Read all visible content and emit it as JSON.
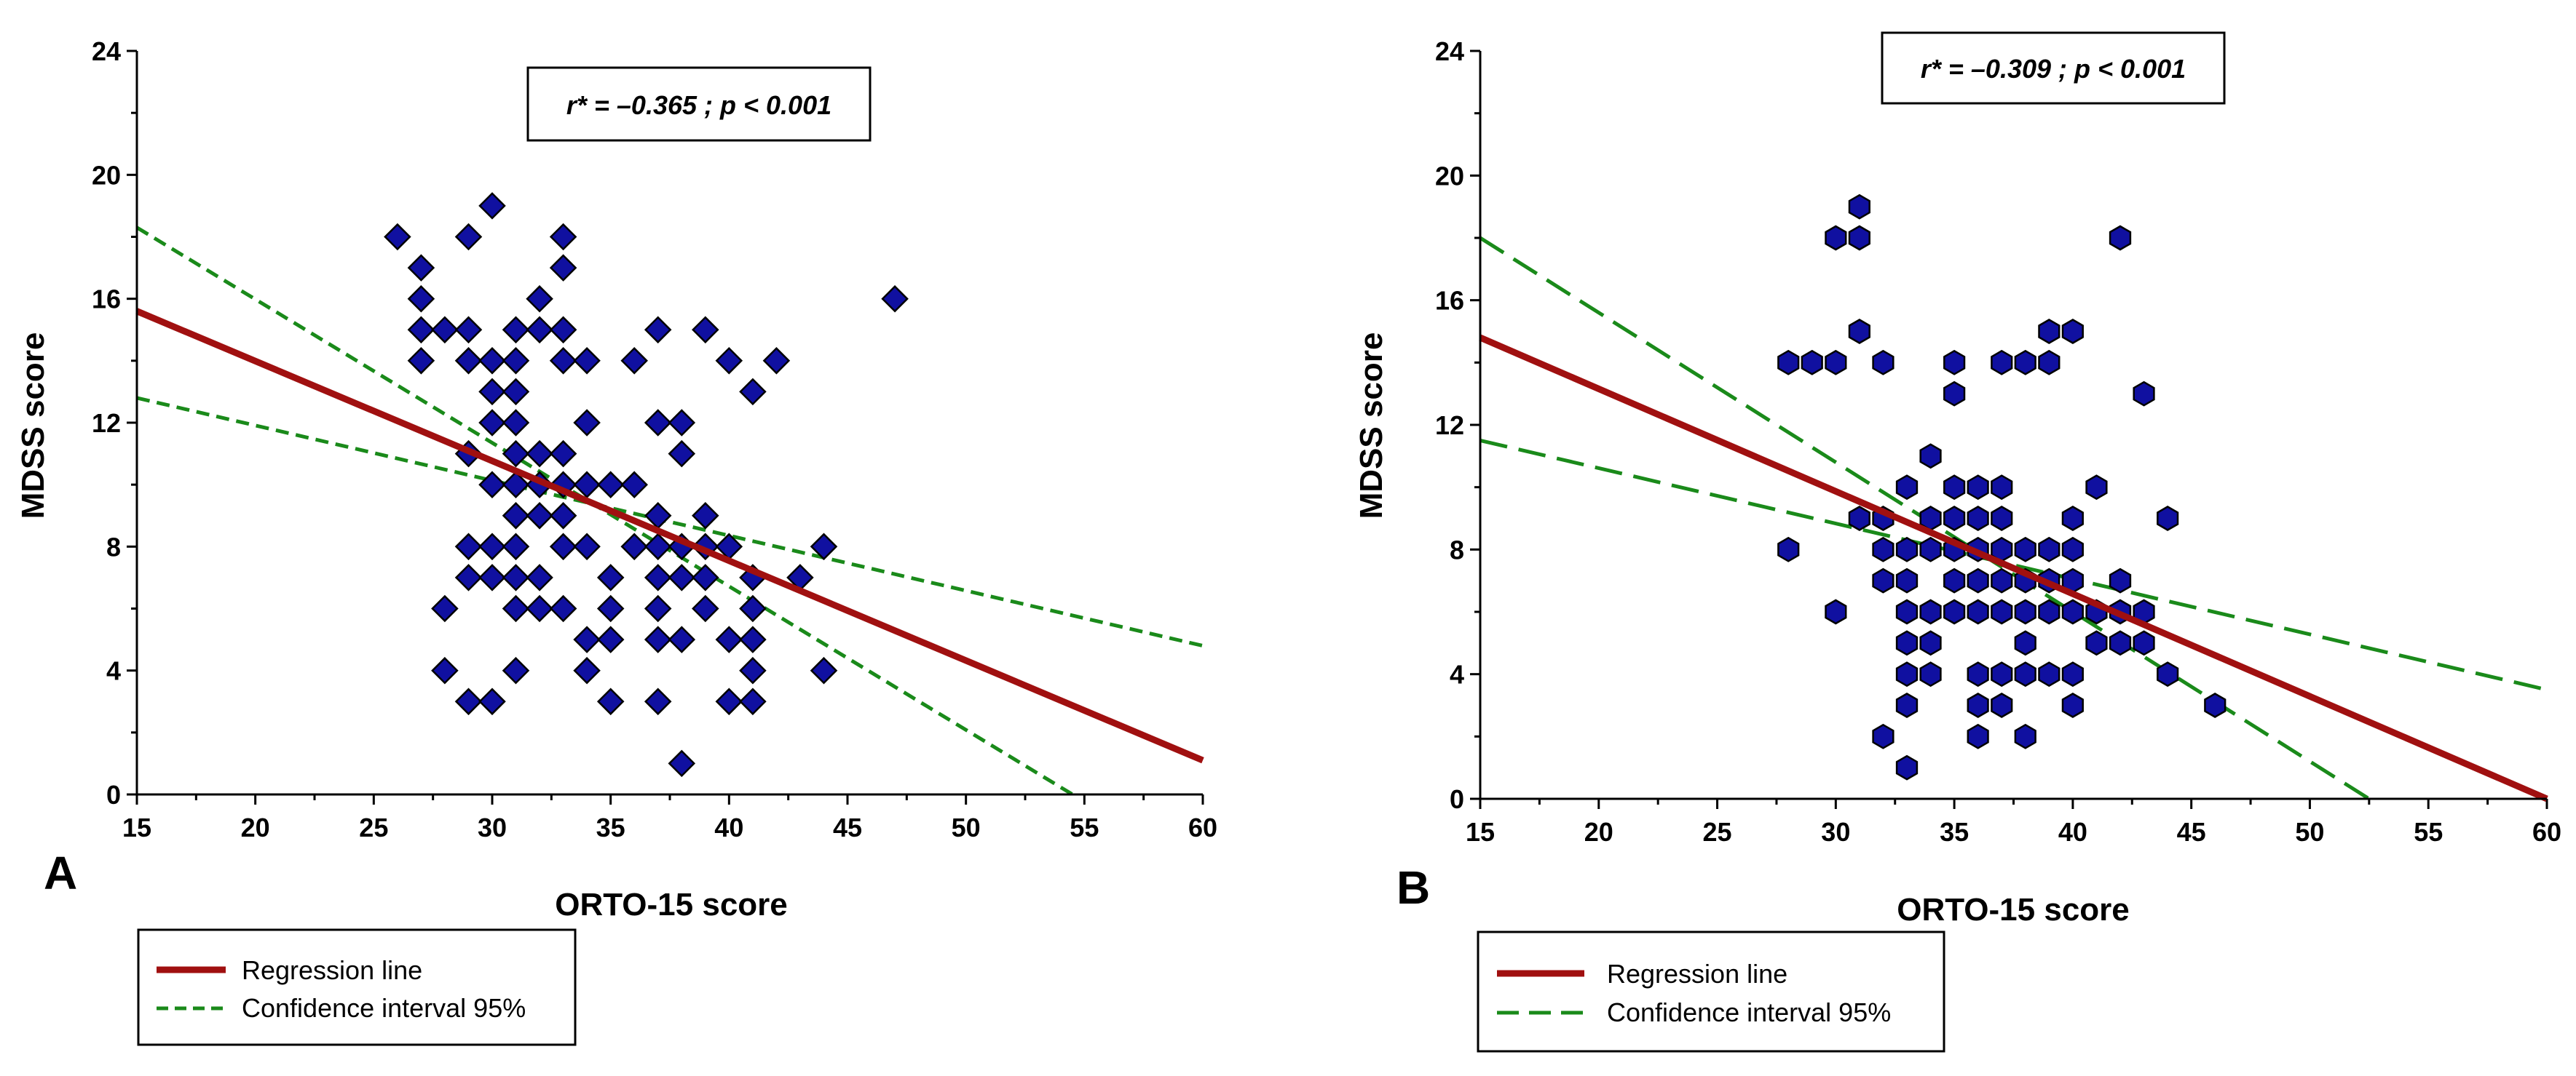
{
  "chart_data": [
    {
      "type": "scatter",
      "panel_label": "A",
      "xlabel": "ORTO-15 score",
      "ylabel": "MDSS score",
      "xlim": [
        15,
        60
      ],
      "ylim": [
        0,
        24
      ],
      "xticks": [
        15,
        20,
        25,
        30,
        35,
        40,
        45,
        50,
        55,
        60
      ],
      "yticks": [
        0,
        4,
        8,
        12,
        16,
        20,
        24
      ],
      "annotation": "r* = –0.365 ; p < 0.001",
      "marker": "diamond",
      "marker_color": "#1010a0",
      "points": [
        [
          26,
          18
        ],
        [
          27,
          17
        ],
        [
          27,
          16
        ],
        [
          27,
          15
        ],
        [
          27,
          14
        ],
        [
          28,
          15
        ],
        [
          28,
          6
        ],
        [
          28,
          4
        ],
        [
          29,
          18
        ],
        [
          29,
          15
        ],
        [
          29,
          14
        ],
        [
          29,
          11
        ],
        [
          29,
          8
        ],
        [
          29,
          7
        ],
        [
          29,
          3
        ],
        [
          30,
          19
        ],
        [
          30,
          14
        ],
        [
          30,
          13
        ],
        [
          30,
          12
        ],
        [
          30,
          10
        ],
        [
          30,
          8
        ],
        [
          30,
          7
        ],
        [
          30,
          3
        ],
        [
          31,
          15
        ],
        [
          31,
          14
        ],
        [
          31,
          13
        ],
        [
          31,
          12
        ],
        [
          31,
          11
        ],
        [
          31,
          10
        ],
        [
          31,
          9
        ],
        [
          31,
          8
        ],
        [
          31,
          7
        ],
        [
          31,
          6
        ],
        [
          31,
          4
        ],
        [
          32,
          16
        ],
        [
          32,
          15
        ],
        [
          32,
          11
        ],
        [
          32,
          10
        ],
        [
          32,
          9
        ],
        [
          32,
          7
        ],
        [
          32,
          6
        ],
        [
          33,
          18
        ],
        [
          33,
          17
        ],
        [
          33,
          15
        ],
        [
          33,
          14
        ],
        [
          33,
          11
        ],
        [
          33,
          10
        ],
        [
          33,
          9
        ],
        [
          33,
          8
        ],
        [
          33,
          6
        ],
        [
          34,
          14
        ],
        [
          34,
          12
        ],
        [
          34,
          10
        ],
        [
          34,
          8
        ],
        [
          34,
          5
        ],
        [
          34,
          4
        ],
        [
          35,
          10
        ],
        [
          35,
          7
        ],
        [
          35,
          6
        ],
        [
          35,
          5
        ],
        [
          35,
          3
        ],
        [
          36,
          14
        ],
        [
          36,
          10
        ],
        [
          36,
          8
        ],
        [
          37,
          15
        ],
        [
          37,
          12
        ],
        [
          37,
          9
        ],
        [
          37,
          8
        ],
        [
          37,
          7
        ],
        [
          37,
          6
        ],
        [
          37,
          5
        ],
        [
          37,
          3
        ],
        [
          38,
          12
        ],
        [
          38,
          11
        ],
        [
          38,
          8
        ],
        [
          38,
          7
        ],
        [
          38,
          5
        ],
        [
          38,
          1
        ],
        [
          39,
          15
        ],
        [
          39,
          9
        ],
        [
          39,
          8
        ],
        [
          39,
          7
        ],
        [
          39,
          6
        ],
        [
          40,
          14
        ],
        [
          40,
          8
        ],
        [
          40,
          5
        ],
        [
          40,
          3
        ],
        [
          41,
          13
        ],
        [
          41,
          7
        ],
        [
          41,
          6
        ],
        [
          41,
          5
        ],
        [
          41,
          4
        ],
        [
          41,
          3
        ],
        [
          42,
          14
        ],
        [
          43,
          7
        ],
        [
          44,
          8
        ],
        [
          44,
          4
        ],
        [
          47,
          16
        ]
      ],
      "regression_line": [
        [
          15,
          15.6
        ],
        [
          60,
          1.1
        ]
      ],
      "ci_upper": [
        [
          15,
          18.3
        ],
        [
          54.5,
          0
        ]
      ],
      "ci_lower": [
        [
          15,
          12.8
        ],
        [
          60,
          4.8
        ]
      ],
      "legend": {
        "position": "bottom-left",
        "regression_label": "Regression line",
        "ci_label": "Confidence interval 95%"
      },
      "colors": {
        "regression": "#a01010",
        "ci": "#1a8a1a"
      }
    },
    {
      "type": "scatter",
      "panel_label": "B",
      "xlabel": "ORTO-15 score",
      "ylabel": "MDSS score",
      "xlim": [
        15,
        60
      ],
      "ylim": [
        0,
        24
      ],
      "xticks": [
        15,
        20,
        25,
        30,
        35,
        40,
        45,
        50,
        55,
        60
      ],
      "yticks": [
        0,
        4,
        8,
        12,
        16,
        20,
        24
      ],
      "annotation": "r* = –0.309 ; p < 0.001",
      "marker": "hexagon",
      "marker_color": "#1010a0",
      "points": [
        [
          28,
          14
        ],
        [
          28,
          8
        ],
        [
          29,
          14
        ],
        [
          30,
          18
        ],
        [
          30,
          14
        ],
        [
          30,
          6
        ],
        [
          31,
          19
        ],
        [
          31,
          18
        ],
        [
          31,
          15
        ],
        [
          31,
          9
        ],
        [
          32,
          14
        ],
        [
          32,
          9
        ],
        [
          32,
          8
        ],
        [
          32,
          7
        ],
        [
          32,
          2
        ],
        [
          33,
          10
        ],
        [
          33,
          8
        ],
        [
          33,
          7
        ],
        [
          33,
          6
        ],
        [
          33,
          5
        ],
        [
          33,
          4
        ],
        [
          33,
          3
        ],
        [
          33,
          1
        ],
        [
          34,
          11
        ],
        [
          34,
          9
        ],
        [
          34,
          8
        ],
        [
          34,
          6
        ],
        [
          34,
          5
        ],
        [
          34,
          4
        ],
        [
          35,
          14
        ],
        [
          35,
          13
        ],
        [
          35,
          10
        ],
        [
          35,
          9
        ],
        [
          35,
          8
        ],
        [
          35,
          7
        ],
        [
          35,
          6
        ],
        [
          36,
          10
        ],
        [
          36,
          9
        ],
        [
          36,
          8
        ],
        [
          36,
          7
        ],
        [
          36,
          6
        ],
        [
          36,
          4
        ],
        [
          36,
          3
        ],
        [
          36,
          2
        ],
        [
          37,
          14
        ],
        [
          37,
          10
        ],
        [
          37,
          9
        ],
        [
          37,
          8
        ],
        [
          37,
          7
        ],
        [
          37,
          6
        ],
        [
          37,
          4
        ],
        [
          37,
          3
        ],
        [
          38,
          14
        ],
        [
          38,
          8
        ],
        [
          38,
          7
        ],
        [
          38,
          6
        ],
        [
          38,
          5
        ],
        [
          38,
          4
        ],
        [
          38,
          2
        ],
        [
          39,
          15
        ],
        [
          39,
          14
        ],
        [
          39,
          8
        ],
        [
          39,
          7
        ],
        [
          39,
          6
        ],
        [
          39,
          4
        ],
        [
          40,
          15
        ],
        [
          40,
          9
        ],
        [
          40,
          8
        ],
        [
          40,
          7
        ],
        [
          40,
          6
        ],
        [
          40,
          4
        ],
        [
          40,
          3
        ],
        [
          41,
          10
        ],
        [
          41,
          6
        ],
        [
          41,
          5
        ],
        [
          42,
          18
        ],
        [
          42,
          7
        ],
        [
          42,
          6
        ],
        [
          42,
          5
        ],
        [
          43,
          13
        ],
        [
          43,
          6
        ],
        [
          43,
          5
        ],
        [
          44,
          9
        ],
        [
          44,
          4
        ],
        [
          46,
          3
        ]
      ],
      "regression_line": [
        [
          15,
          14.8
        ],
        [
          60,
          0
        ]
      ],
      "ci_upper": [
        [
          15,
          18.0
        ],
        [
          52.5,
          0
        ]
      ],
      "ci_lower": [
        [
          15,
          11.5
        ],
        [
          60,
          3.5
        ]
      ],
      "legend": {
        "position": "bottom-left",
        "regression_label": "Regression line",
        "ci_label": "Confidence interval 95%"
      },
      "colors": {
        "regression": "#a01010",
        "ci": "#1a8a1a"
      }
    }
  ]
}
